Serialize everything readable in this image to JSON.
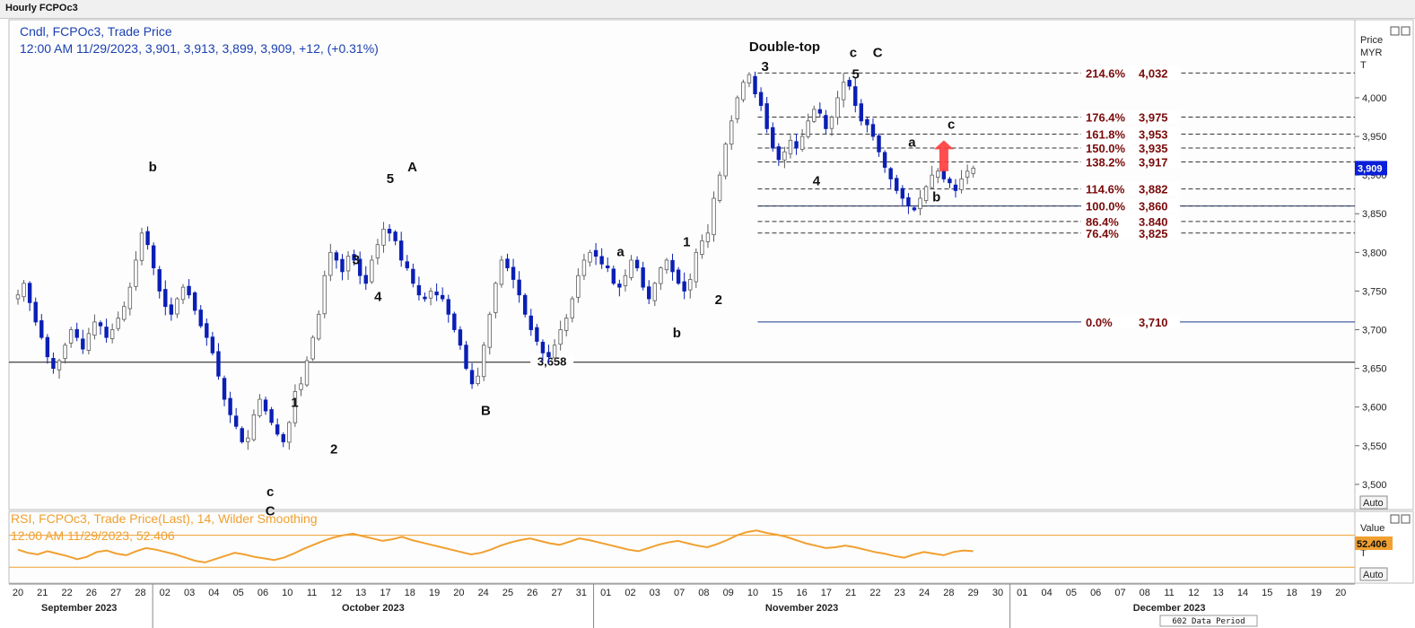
{
  "window": {
    "title": "Hourly FCPOc3"
  },
  "price_panel": {
    "legend_line1": "Cndl, FCPOc3, Trade Price",
    "legend_line2": "12:00 AM 11/29/2023, 3,901, 3,913, 3,899, 3,909, +12, (+0.31%)",
    "axis_title": [
      "Price",
      "MYR",
      "T"
    ],
    "last_price_badge": "3,909",
    "auto_label": "Auto"
  },
  "rsi_panel": {
    "legend_line1": "RSI, FCPOc3, Trade Price(Last), 14, Wilder Smoothing",
    "legend_line2": "12:00 AM 11/29/2023, 52.406",
    "axis_title": [
      "Value",
      "T"
    ],
    "last_value_badge": "52.406",
    "auto_label": "Auto",
    "ticks": [
      30,
      70
    ],
    "values": [
      52,
      48,
      46,
      50,
      47,
      44,
      40,
      43,
      49,
      51,
      47,
      45,
      50,
      54,
      52,
      49,
      46,
      42,
      38,
      36,
      40,
      44,
      48,
      46,
      43,
      41,
      39,
      42,
      47,
      53,
      58,
      63,
      67,
      70,
      72,
      69,
      66,
      63,
      65,
      68,
      64,
      61,
      58,
      55,
      52,
      49,
      46,
      48,
      52,
      57,
      61,
      64,
      66,
      63,
      60,
      58,
      62,
      66,
      64,
      61,
      58,
      55,
      52,
      50,
      54,
      58,
      61,
      63,
      60,
      57,
      55,
      59,
      64,
      70,
      74,
      76,
      73,
      71,
      68,
      64,
      60,
      57,
      54,
      55,
      57,
      55,
      52,
      49,
      47,
      44,
      42,
      46,
      49,
      47,
      45,
      49,
      51,
      50
    ]
  },
  "chart_data": {
    "type": "candlestick",
    "title": "Hourly FCPOc3",
    "ylabel": "Price MYR",
    "ylim": [
      3450,
      4080
    ],
    "y_ticks": [
      3500,
      3550,
      3600,
      3650,
      3700,
      3750,
      3800,
      3850,
      3900,
      3950,
      4000
    ],
    "y_tick_labels": [
      "3,500",
      "3,550",
      "3,600",
      "3,650",
      "3,700",
      "3,750",
      "3,800",
      "3,850",
      "3,900",
      "3,950",
      "4,000"
    ],
    "x_range": [
      0,
      50
    ],
    "x_days": [
      {
        "label": "20",
        "x": 0
      },
      {
        "label": "21",
        "x": 1
      },
      {
        "label": "22",
        "x": 2
      },
      {
        "label": "26",
        "x": 3
      },
      {
        "label": "27",
        "x": 4
      },
      {
        "label": "28",
        "x": 5
      },
      {
        "label": "02",
        "x": 6
      },
      {
        "label": "03",
        "x": 7
      },
      {
        "label": "04",
        "x": 8
      },
      {
        "label": "05",
        "x": 9
      },
      {
        "label": "06",
        "x": 10
      },
      {
        "label": "10",
        "x": 11
      },
      {
        "label": "11",
        "x": 12
      },
      {
        "label": "12",
        "x": 13
      },
      {
        "label": "13",
        "x": 14
      },
      {
        "label": "17",
        "x": 15
      },
      {
        "label": "18",
        "x": 16
      },
      {
        "label": "19",
        "x": 17
      },
      {
        "label": "20",
        "x": 18
      },
      {
        "label": "24",
        "x": 19
      },
      {
        "label": "25",
        "x": 20
      },
      {
        "label": "26",
        "x": 21
      },
      {
        "label": "27",
        "x": 22
      },
      {
        "label": "31",
        "x": 23
      },
      {
        "label": "01",
        "x": 24
      },
      {
        "label": "02",
        "x": 25
      },
      {
        "label": "03",
        "x": 26
      },
      {
        "label": "07",
        "x": 27
      },
      {
        "label": "08",
        "x": 28
      },
      {
        "label": "09",
        "x": 29
      },
      {
        "label": "10",
        "x": 30
      },
      {
        "label": "15",
        "x": 31
      },
      {
        "label": "16",
        "x": 32
      },
      {
        "label": "17",
        "x": 33
      },
      {
        "label": "21",
        "x": 34
      },
      {
        "label": "22",
        "x": 35
      },
      {
        "label": "23",
        "x": 36
      },
      {
        "label": "24",
        "x": 37
      },
      {
        "label": "28",
        "x": 38
      },
      {
        "label": "29",
        "x": 39
      },
      {
        "label": "30",
        "x": 40
      },
      {
        "label": "01",
        "x": 41
      },
      {
        "label": "04",
        "x": 42
      },
      {
        "label": "05",
        "x": 43
      },
      {
        "label": "06",
        "x": 44
      },
      {
        "label": "07",
        "x": 45
      },
      {
        "label": "08",
        "x": 46
      },
      {
        "label": "11",
        "x": 47
      },
      {
        "label": "12",
        "x": 48
      },
      {
        "label": "13",
        "x": 49
      },
      {
        "label": "14",
        "x": 50
      },
      {
        "label": "15",
        "x": 51
      },
      {
        "label": "18",
        "x": 52
      },
      {
        "label": "19",
        "x": 53
      },
      {
        "label": "20",
        "x": 54
      }
    ],
    "months": [
      {
        "label": "September 2023",
        "x": 2.5
      },
      {
        "label": "October 2023",
        "x": 14.5
      },
      {
        "label": "November 2023",
        "x": 32
      },
      {
        "label": "December 2023",
        "x": 47
      }
    ],
    "month_separators": [
      5.5,
      23.5,
      40.5
    ],
    "data_period_label": "602 Data Period",
    "last_x": 39,
    "closes": [
      3745,
      3760,
      3735,
      3710,
      3690,
      3665,
      3650,
      3660,
      3680,
      3700,
      3690,
      3675,
      3695,
      3710,
      3705,
      3690,
      3700,
      3715,
      3730,
      3755,
      3790,
      3825,
      3810,
      3780,
      3750,
      3730,
      3720,
      3740,
      3755,
      3745,
      3725,
      3705,
      3690,
      3670,
      3640,
      3610,
      3590,
      3575,
      3555,
      3560,
      3590,
      3610,
      3595,
      3580,
      3565,
      3555,
      3580,
      3620,
      3630,
      3660,
      3690,
      3720,
      3770,
      3800,
      3790,
      3775,
      3795,
      3790,
      3770,
      3760,
      3790,
      3810,
      3830,
      3825,
      3815,
      3790,
      3780,
      3760,
      3745,
      3740,
      3750,
      3745,
      3740,
      3720,
      3700,
      3680,
      3650,
      3630,
      3640,
      3680,
      3720,
      3760,
      3790,
      3780,
      3765,
      3745,
      3720,
      3700,
      3685,
      3670,
      3665,
      3680,
      3700,
      3715,
      3740,
      3770,
      3790,
      3800,
      3795,
      3785,
      3780,
      3760,
      3755,
      3770,
      3790,
      3780,
      3755,
      3740,
      3760,
      3780,
      3790,
      3775,
      3760,
      3750,
      3765,
      3800,
      3815,
      3825,
      3870,
      3900,
      3940,
      3970,
      4000,
      4020,
      4030,
      4005,
      3990,
      3960,
      3935,
      3920,
      3930,
      3945,
      3935,
      3950,
      3970,
      3985,
      3980,
      3960,
      3975,
      4000,
      4020,
      4015,
      3990,
      3970,
      3965,
      3950,
      3930,
      3910,
      3895,
      3880,
      3870,
      3860,
      3855,
      3870,
      3885,
      3900,
      3905,
      3895,
      3890,
      3880,
      3895,
      3905,
      3909
    ],
    "horizontal_lines": [
      {
        "value": 3658,
        "label": "3,658",
        "style": "solid",
        "label_x": 21.8
      },
      {
        "value": 3860,
        "label": "",
        "style": "solid-blue",
        "x_start": 30.2
      }
    ],
    "fib_levels": [
      {
        "pct": "214.6%",
        "value": 4032,
        "label": "4,032"
      },
      {
        "pct": "176.4%",
        "value": 3975,
        "label": "3,975"
      },
      {
        "pct": "161.8%",
        "value": 3953,
        "label": "3,953"
      },
      {
        "pct": "150.0%",
        "value": 3935,
        "label": "3,935"
      },
      {
        "pct": "138.2%",
        "value": 3917,
        "label": "3,917"
      },
      {
        "pct": "114.6%",
        "value": 3882,
        "label": "3,882"
      },
      {
        "pct": "100.0%",
        "value": 3860,
        "label": "3,860"
      },
      {
        "pct": "86.4%",
        "value": 3840,
        "label": "3,840"
      },
      {
        "pct": "76.4%",
        "value": 3825,
        "label": "3,825"
      },
      {
        "pct": "0.0%",
        "value": 3710,
        "label": "3,710"
      }
    ],
    "fib_start_x": 30.2,
    "annotations": [
      {
        "text": "b",
        "x": 5.5,
        "y": 3905
      },
      {
        "text": "c",
        "x": 10.3,
        "y": 3485
      },
      {
        "text": "C",
        "x": 10.3,
        "y": 3460
      },
      {
        "text": "1",
        "x": 11.3,
        "y": 3600
      },
      {
        "text": "2",
        "x": 12.9,
        "y": 3540
      },
      {
        "text": "3",
        "x": 13.8,
        "y": 3785
      },
      {
        "text": "4",
        "x": 14.7,
        "y": 3737
      },
      {
        "text": "5",
        "x": 15.2,
        "y": 3890
      },
      {
        "text": "A",
        "x": 16.1,
        "y": 3905
      },
      {
        "text": "B",
        "x": 19.1,
        "y": 3590
      },
      {
        "text": "a",
        "x": 24.6,
        "y": 3795
      },
      {
        "text": "b",
        "x": 26.9,
        "y": 3690
      },
      {
        "text": "1",
        "x": 27.3,
        "y": 3808
      },
      {
        "text": "2",
        "x": 28.6,
        "y": 3733
      },
      {
        "text": "Double-top",
        "x": 31.3,
        "y": 4060
      },
      {
        "text": "3",
        "x": 30.5,
        "y": 4035
      },
      {
        "text": "4",
        "x": 32.6,
        "y": 3887
      },
      {
        "text": "c",
        "x": 34.1,
        "y": 4053
      },
      {
        "text": "5",
        "x": 34.2,
        "y": 4025
      },
      {
        "text": "C",
        "x": 35.1,
        "y": 4053
      },
      {
        "text": "a",
        "x": 36.5,
        "y": 3937
      },
      {
        "text": "b",
        "x": 37.5,
        "y": 3866
      },
      {
        "text": "c",
        "x": 38.1,
        "y": 3960
      }
    ],
    "arrow": {
      "x": 37.8,
      "y_from": 3905,
      "y_to": 3945,
      "color": "#ff3b3b"
    }
  },
  "colors": {
    "candle_up": "#5c5c5c",
    "candle_down": "#0a1fb4",
    "legend_blue": "#1a3fb0",
    "rsi_orange": "#f0a030",
    "fib_red": "#7a0a0a",
    "badge_blue": "#0a1fd8",
    "badge_orange": "#f0a030"
  }
}
